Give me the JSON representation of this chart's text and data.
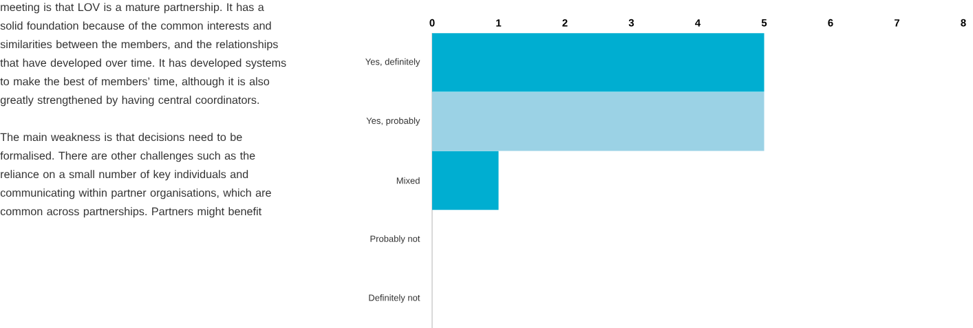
{
  "chart_data": {
    "type": "bar",
    "orientation": "horizontal",
    "categories": [
      "Yes, definitely",
      "Yes, probably",
      "Mixed",
      "Probably not",
      "Definitely not"
    ],
    "values": [
      5,
      5,
      1,
      0,
      0
    ],
    "colors": [
      "#00aed1",
      "#9bd2e5",
      "#00aed1",
      "#00aed1",
      "#00aed1"
    ],
    "xlim": [
      0,
      8
    ],
    "xticks": [
      0,
      1,
      2,
      3,
      4,
      5,
      6,
      7,
      8
    ],
    "annotations": [
      "meeting is that LOV is a mature partnership. It has a solid foundation because of the common interests and similarities between the members, and the relationships that have developed over time. It has developed systems to make the best of members’ time, although it is also greatly strengthened by having central coordinators.",
      "The main weakness is that decisions need to be formalised. There are other challenges such as the reliance on a small number of key individuals and communicating within partner organisations, which are common across partnerships. Partners might benefit"
    ]
  }
}
